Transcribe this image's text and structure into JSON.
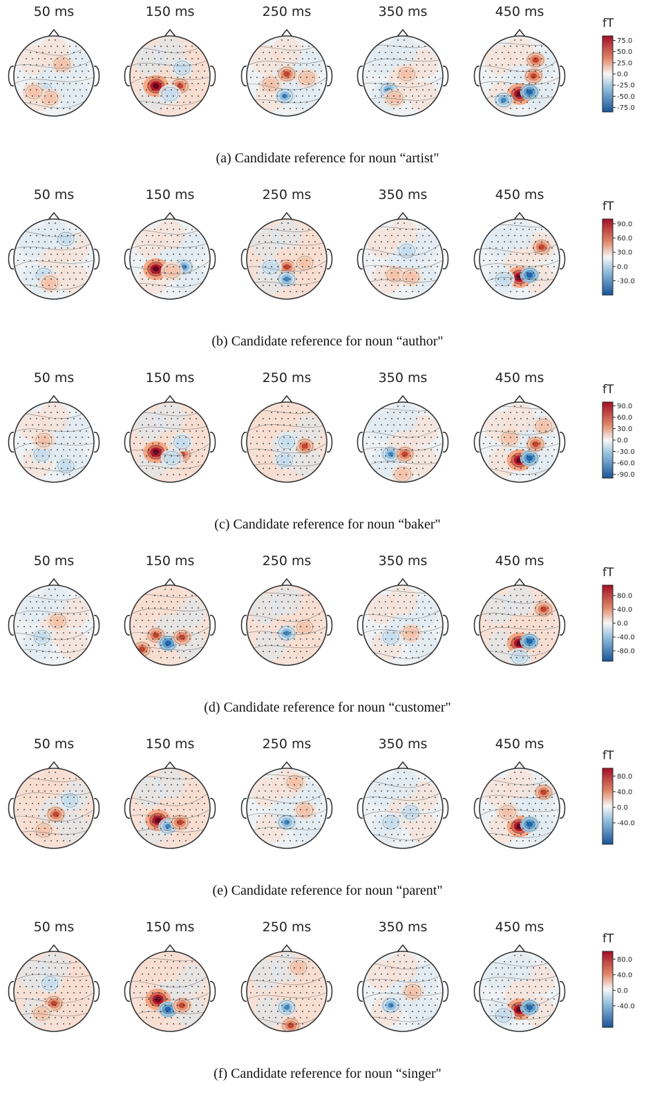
{
  "figure": {
    "unit": "fT",
    "times": [
      "50 ms",
      "150 ms",
      "250 ms",
      "350 ms",
      "450 ms"
    ],
    "colormap": {
      "neg": "#1a5598",
      "zero": "#f7f7f7",
      "pos": "#a30f26",
      "light_pos": "#f2b79e",
      "light_neg": "#a9cde4"
    },
    "panels": [
      {
        "caption": "(a) Candidate reference for noun “artist\"",
        "colorbar": {
          "ticks": [
            "75.0",
            "50.0",
            "25.0",
            "0.0",
            "-25.0",
            "-50.0",
            "-75.0"
          ],
          "range": [
            -85,
            85
          ]
        },
        "maps": [
          {
            "bg": "neutral-mixed",
            "blobs": [
              [
                "-0.25",
                "0.35",
                "blue-weak"
              ],
              [
                "-0.1",
                "0.55",
                "red-weak"
              ],
              [
                "0.2",
                "-0.3",
                "red-weak"
              ],
              [
                "-0.5",
                "0.4",
                "red-weak"
              ]
            ]
          },
          {
            "bg": "red-weak",
            "blobs": [
              [
                "-0.35",
                "0.25",
                "red-strong"
              ],
              [
                "0.25",
                "0.25",
                "red-mid"
              ],
              [
                "0",
                "0.45",
                "blue-weak"
              ],
              [
                "0.3",
                "-0.2",
                "blue-weak"
              ]
            ]
          },
          {
            "bg": "neutral-mixed",
            "blobs": [
              [
                "0",
                "-0.05",
                "red-mid"
              ],
              [
                "-0.05",
                "0.5",
                "blue-mid"
              ],
              [
                "0.5",
                "0.05",
                "red-weak"
              ],
              [
                "-0.4",
                "0.2",
                "red-weak"
              ]
            ]
          },
          {
            "bg": "neutral-mixed",
            "blobs": [
              [
                "-0.35",
                "0.35",
                "blue-mid"
              ],
              [
                "0.1",
                "-0.05",
                "red-weak"
              ],
              [
                "-0.2",
                "0.55",
                "red-weak"
              ]
            ]
          },
          {
            "bg": "neutral-mixed",
            "blobs": [
              [
                "0",
                "0.45",
                "red-strong"
              ],
              [
                "0.25",
                "0.4",
                "blue-strong"
              ],
              [
                "0.4",
                "-0.4",
                "red-mid"
              ],
              [
                "0.35",
                "0",
                "red-mid"
              ],
              [
                "-0.4",
                "0.6",
                "blue-mid"
              ]
            ]
          }
        ]
      },
      {
        "caption": "(b) Candidate reference for noun “author\"",
        "colorbar": {
          "ticks": [
            "90.0",
            "60.0",
            "30.0",
            "0.0",
            "-30.0"
          ],
          "range": [
            -60,
            100
          ]
        },
        "maps": [
          {
            "bg": "neutral-mixed",
            "blobs": [
              [
                "-0.25",
                "0.4",
                "blue-weak"
              ],
              [
                "-0.1",
                "0.6",
                "red-weak"
              ],
              [
                "0.3",
                "-0.5",
                "blue-weak"
              ]
            ]
          },
          {
            "bg": "neutral-mixed",
            "blobs": [
              [
                "-0.35",
                "0.25",
                "red-strong"
              ],
              [
                "0.35",
                "0.2",
                "blue-mid"
              ],
              [
                "0.05",
                "0.3",
                "red-weak"
              ]
            ]
          },
          {
            "bg": "red-weak",
            "blobs": [
              [
                "0",
                "0.2",
                "red-mid"
              ],
              [
                "0",
                "0.5",
                "blue-mid"
              ],
              [
                "-0.4",
                "0.2",
                "blue-weak"
              ],
              [
                "0.45",
                "0.1",
                "red-weak"
              ]
            ]
          },
          {
            "bg": "neutral-mixed",
            "blobs": [
              [
                "-0.2",
                "0.4",
                "red-weak"
              ],
              [
                "0.2",
                "0.45",
                "red-weak"
              ],
              [
                "0.1",
                "-0.2",
                "blue-weak"
              ]
            ]
          },
          {
            "bg": "neutral-mixed",
            "blobs": [
              [
                "0",
                "0.45",
                "red-strong"
              ],
              [
                "0.25",
                "0.4",
                "blue-strong"
              ],
              [
                "0.55",
                "-0.3",
                "red-mid"
              ],
              [
                "-0.4",
                "0.5",
                "blue-weak"
              ]
            ]
          }
        ]
      },
      {
        "caption": "(c) Candidate reference for noun “baker\"",
        "colorbar": {
          "ticks": [
            "90.0",
            "60.0",
            "30.0",
            "0.0",
            "-30.0",
            "-60.0",
            "-90.0"
          ],
          "range": [
            -100,
            100
          ]
        },
        "maps": [
          {
            "bg": "neutral-mixed",
            "blobs": [
              [
                "-0.3",
                "0.3",
                "blue-weak"
              ],
              [
                "-0.25",
                "-0.05",
                "red-weak"
              ],
              [
                "0.3",
                "0.6",
                "blue-weak"
              ]
            ]
          },
          {
            "bg": "red-weak",
            "blobs": [
              [
                "-0.35",
                "0.25",
                "red-strong"
              ],
              [
                "0.3",
                "0.3",
                "red-mid"
              ],
              [
                "0.05",
                "0.4",
                "blue-weak"
              ],
              [
                "0.3",
                "0",
                "blue-weak"
              ]
            ]
          },
          {
            "bg": "red-weak",
            "blobs": [
              [
                "0.45",
                "0.1",
                "red-mid"
              ],
              [
                "-0.05",
                "0.45",
                "blue-weak"
              ],
              [
                "0",
                "0",
                "blue-weak"
              ]
            ]
          },
          {
            "bg": "neutral-mixed",
            "blobs": [
              [
                "-0.3",
                "0.3",
                "blue-mid"
              ],
              [
                "0.05",
                "0.3",
                "red-mid"
              ],
              [
                "0",
                "0.8",
                "red-weak"
              ]
            ]
          },
          {
            "bg": "neutral-mixed",
            "blobs": [
              [
                "0",
                "0.45",
                "red-strong"
              ],
              [
                "0.25",
                "0.4",
                "blue-strong"
              ],
              [
                "0.4",
                "0.05",
                "red-mid"
              ],
              [
                "0.6",
                "-0.4",
                "red-weak"
              ],
              [
                "-0.25",
                "-0.1",
                "red-weak"
              ]
            ]
          }
        ]
      },
      {
        "caption": "(d) Candidate reference for noun “customer\"",
        "colorbar": {
          "ticks": [
            "80.0",
            "40.0",
            "0.0",
            "-40.0",
            "-80.0"
          ],
          "range": [
            -110,
            110
          ]
        },
        "maps": [
          {
            "bg": "neutral-mixed",
            "blobs": [
              [
                "-0.3",
                "0.3",
                "blue-weak"
              ],
              [
                "0.1",
                "-0.1",
                "red-weak"
              ]
            ]
          },
          {
            "bg": "red-weak",
            "blobs": [
              [
                "-0.35",
                "0.25",
                "red-mid"
              ],
              [
                "-0.05",
                "0.45",
                "blue-strong"
              ],
              [
                "0.3",
                "0.3",
                "red-mid"
              ],
              [
                "-0.7",
                "0.6",
                "red-mid"
              ]
            ]
          },
          {
            "bg": "red-weak",
            "blobs": [
              [
                "0",
                "0.2",
                "blue-mid"
              ],
              [
                "0.45",
                "0.05",
                "red-weak"
              ]
            ]
          },
          {
            "bg": "neutral-mixed",
            "blobs": [
              [
                "-0.3",
                "0.3",
                "blue-weak"
              ],
              [
                "0.2",
                "0.2",
                "red-weak"
              ]
            ]
          },
          {
            "bg": "red-weak",
            "blobs": [
              [
                "0",
                "0.45",
                "red-strong"
              ],
              [
                "0.25",
                "0.4",
                "blue-strong"
              ],
              [
                "0.6",
                "-0.4",
                "red-mid"
              ],
              [
                "0",
                "0.8",
                "blue-weak"
              ]
            ]
          }
        ]
      },
      {
        "caption": "(e) Candidate reference for noun “parent\"",
        "colorbar": {
          "ticks": [
            "80.0",
            "40.0",
            "0.0",
            "-40.0"
          ],
          "range": [
            -95,
            100
          ]
        },
        "maps": [
          {
            "bg": "red-weak",
            "blobs": [
              [
                "0.05",
                "0.15",
                "red-mid"
              ],
              [
                "0.4",
                "-0.2",
                "blue-weak"
              ],
              [
                "-0.25",
                "0.55",
                "red-weak"
              ]
            ]
          },
          {
            "bg": "red-weak",
            "blobs": [
              [
                "-0.3",
                "0.3",
                "red-strong"
              ],
              [
                "-0.05",
                "0.45",
                "blue-mid"
              ],
              [
                "0.25",
                "0.35",
                "red-mid"
              ]
            ]
          },
          {
            "bg": "neutral-mixed",
            "blobs": [
              [
                "0",
                "0.35",
                "blue-mid"
              ],
              [
                "0.2",
                "-0.65",
                "red-weak"
              ],
              [
                "0.45",
                "0.05",
                "red-weak"
              ]
            ]
          },
          {
            "bg": "neutral-mixed",
            "blobs": [
              [
                "-0.3",
                "0.35",
                "blue-weak"
              ],
              [
                "0.2",
                "0.1",
                "blue-weak"
              ]
            ]
          },
          {
            "bg": "neutral-mixed",
            "blobs": [
              [
                "0",
                "0.45",
                "red-strong"
              ],
              [
                "0.25",
                "0.4",
                "blue-strong"
              ],
              [
                "0.6",
                "-0.4",
                "red-mid"
              ],
              [
                "-0.3",
                "0.1",
                "red-weak"
              ]
            ]
          }
        ]
      },
      {
        "caption": "(f) Candidate reference for noun “singer\"",
        "colorbar": {
          "ticks": [
            "80.0",
            "40.0",
            "0.0",
            "-40.0"
          ],
          "range": [
            -95,
            100
          ]
        },
        "maps": [
          {
            "bg": "red-weak",
            "blobs": [
              [
                "0",
                "0.3",
                "red-mid"
              ],
              [
                "-0.1",
                "-0.2",
                "blue-weak"
              ],
              [
                "-0.3",
                "0.55",
                "red-weak"
              ]
            ]
          },
          {
            "bg": "red-weak",
            "blobs": [
              [
                "-0.3",
                "0.2",
                "red-strong"
              ],
              [
                "-0.05",
                "0.45",
                "blue-strong"
              ],
              [
                "0.3",
                "0.35",
                "red-mid"
              ]
            ]
          },
          {
            "bg": "red-weak",
            "blobs": [
              [
                "0",
                "0.4",
                "blue-mid"
              ],
              [
                "0.1",
                "0.85",
                "red-mid"
              ],
              [
                "0.3",
                "-0.6",
                "red-weak"
              ]
            ]
          },
          {
            "bg": "neutral-mixed",
            "blobs": [
              [
                "-0.3",
                "0.35",
                "blue-mid"
              ],
              [
                "0.25",
                "0",
                "red-weak"
              ]
            ]
          },
          {
            "bg": "neutral-mixed",
            "blobs": [
              [
                "0",
                "0.45",
                "red-strong"
              ],
              [
                "0.25",
                "0.4",
                "blue-strong"
              ],
              [
                "-0.4",
                "0.6",
                "blue-weak"
              ]
            ]
          }
        ]
      }
    ]
  }
}
